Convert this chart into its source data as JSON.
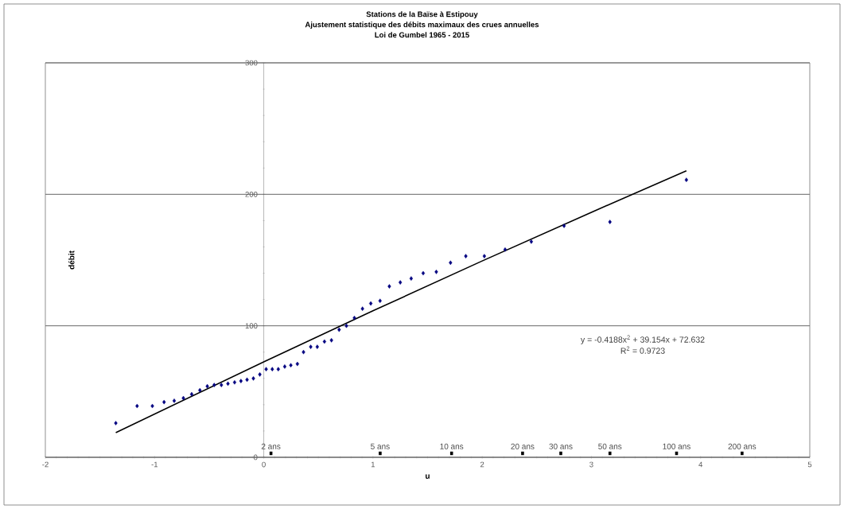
{
  "chart_data": {
    "type": "scatter",
    "title": "Stations de la Baïse à Estipouy",
    "subtitle": "Ajustement statistique des débits maximaux des crues annuelles\nLoi de Gumbel 1965 - 2015",
    "xlabel": "u",
    "ylabel": "débit",
    "xlim": [
      -2,
      5
    ],
    "xticks": [
      -2,
      -1,
      0,
      1,
      2,
      3,
      4,
      5
    ],
    "ylim": [
      0,
      300
    ],
    "yticks": [
      0,
      100,
      200,
      300
    ],
    "grid": "y",
    "legend": false,
    "marker": "diamond",
    "series": [
      {
        "color": "#000080",
        "x": [
          -1.355,
          -1.16,
          -1.02,
          -0.913,
          -0.82,
          -0.736,
          -0.66,
          -0.585,
          -0.517,
          -0.454,
          -0.388,
          -0.328,
          -0.267,
          -0.209,
          -0.153,
          -0.095,
          -0.036,
          0.022,
          0.078,
          0.133,
          0.192,
          0.248,
          0.308,
          0.364,
          0.43,
          0.49,
          0.556,
          0.62,
          0.69,
          0.757,
          0.83,
          0.904,
          0.98,
          1.065,
          1.15,
          1.25,
          1.35,
          1.46,
          1.58,
          1.71,
          1.85,
          2.02,
          2.21,
          2.45,
          2.75,
          3.17,
          3.87
        ],
        "values": [
          26,
          39,
          39,
          42,
          43,
          45,
          48,
          51,
          54,
          55,
          55,
          56,
          57,
          58,
          59,
          60,
          63,
          67,
          67,
          67,
          69,
          70,
          71,
          80,
          84,
          84,
          88,
          89,
          97,
          100,
          106,
          113,
          117,
          119,
          130,
          133,
          136,
          140,
          141,
          148,
          153,
          153,
          158,
          164,
          176,
          179,
          211
        ]
      },
      {
        "type": "line",
        "color": "#000000",
        "marker": "none",
        "line_style": "solid",
        "x": [
          -1.355,
          0,
          1,
          2,
          3,
          3.87
        ],
        "values": [
          18.8,
          72.6,
          111.4,
          149.3,
          186.3,
          217.9
        ]
      }
    ],
    "annotations": [
      "y = -0.4188x$^{2}$ + 39.154x + 72.632",
      "R$^{2}$ = 0.9723",
      {
        "text": "2 ans",
        "x": 0.066,
        "y": 3
      },
      {
        "text": "5 ans",
        "x": 1.066,
        "y": 3
      },
      {
        "text": "10 ans",
        "x": 1.72,
        "y": 3
      },
      {
        "text": "20 ans",
        "x": 2.37,
        "y": 3
      },
      {
        "text": "30 ans",
        "x": 2.72,
        "y": 3
      },
      {
        "text": "50 ans",
        "x": 3.17,
        "y": 3
      },
      {
        "text": "100 ans",
        "x": 3.78,
        "y": 3
      },
      {
        "text": "200 ans",
        "x": 4.38,
        "y": 3
      }
    ]
  }
}
